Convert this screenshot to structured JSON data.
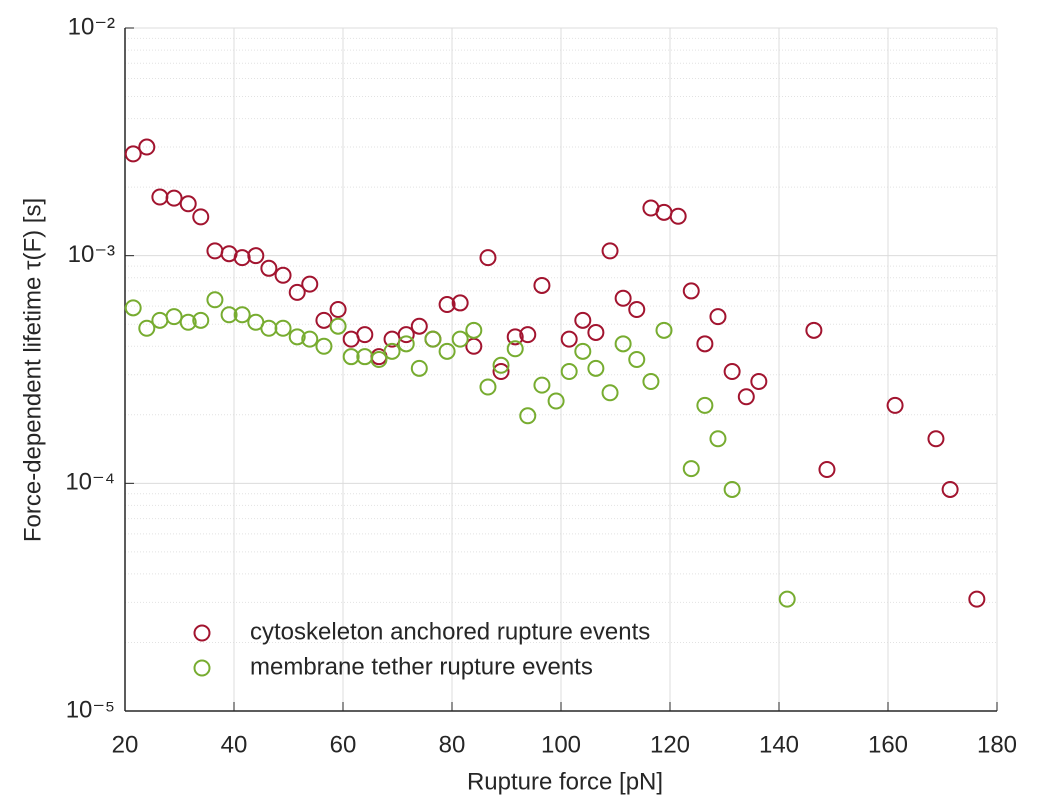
{
  "chart_data": {
    "type": "scatter",
    "x_label": "Rupture force [pN]",
    "y_label": "Force-dependent lifetime τ(F) [s]",
    "xlim": [
      20,
      180
    ],
    "xticks": [
      20,
      40,
      60,
      80,
      100,
      120,
      140,
      160,
      180
    ],
    "ylim": [
      1e-05,
      0.01
    ],
    "yticks": [
      {
        "value": 1e-05,
        "label": "10⁻⁵"
      },
      {
        "value": 0.0001,
        "label": "10⁻⁴"
      },
      {
        "value": 0.001,
        "label": "10⁻³"
      },
      {
        "value": 0.01,
        "label": "10⁻²"
      }
    ],
    "yminorticks": [
      2e-05,
      3e-05,
      4e-05,
      5e-05,
      6e-05,
      7e-05,
      8e-05,
      9e-05,
      0.0002,
      0.0003,
      0.0004,
      0.0005,
      0.0006,
      0.0007,
      0.0008,
      0.0009,
      0.002,
      0.003,
      0.004,
      0.005,
      0.006,
      0.007,
      0.008,
      0.009
    ],
    "y_scale": "log",
    "grid": true,
    "legend": "lower left",
    "series": [
      {
        "name": "cytoskeleton anchored rupture events",
        "color": "#a2142f",
        "x": [
          21.5,
          24.0,
          26.4,
          29.0,
          31.6,
          33.9,
          36.5,
          39.1,
          41.5,
          44.0,
          46.4,
          49.0,
          51.6,
          53.9,
          56.5,
          59.1,
          61.5,
          64.0,
          66.6,
          69.0,
          71.6,
          74.0,
          76.5,
          79.1,
          81.5,
          84.0,
          86.6,
          89.0,
          91.6,
          93.9,
          96.5,
          101.5,
          104.0,
          106.4,
          109.0,
          111.4,
          113.9,
          116.5,
          118.9,
          121.5,
          123.9,
          126.4,
          128.8,
          131.4,
          134.0,
          136.3,
          146.4,
          148.8,
          161.3,
          168.8,
          171.4,
          176.3
        ],
        "values": [
          0.0028,
          0.003,
          0.00181,
          0.00179,
          0.00169,
          0.00148,
          0.00105,
          0.00102,
          0.00098,
          0.001,
          0.00088,
          0.00082,
          0.00069,
          0.00075,
          0.00052,
          0.00058,
          0.00043,
          0.00045,
          0.00036,
          0.00043,
          0.00045,
          0.00049,
          0.00043,
          0.00061,
          0.00062,
          0.0004,
          0.00098,
          0.00031,
          0.00044,
          0.00045,
          0.00074,
          0.00043,
          0.00052,
          0.00046,
          0.00105,
          0.00065,
          0.00058,
          0.00162,
          0.00155,
          0.00149,
          0.0007,
          0.00041,
          0.00054,
          0.00031,
          0.00024,
          0.00028,
          0.00047,
          0.000115,
          0.00022,
          0.000157,
          9.4e-05,
          3.1e-05
        ]
      },
      {
        "name": "membrane tether rupture events",
        "color": "#77ac30",
        "x": [
          21.5,
          24.0,
          26.4,
          29.0,
          31.6,
          33.9,
          36.5,
          39.1,
          41.5,
          44.0,
          46.4,
          49.0,
          51.6,
          53.9,
          56.5,
          59.1,
          61.5,
          64.0,
          66.6,
          69.0,
          71.6,
          74.0,
          76.5,
          79.1,
          81.5,
          84.0,
          86.6,
          89.0,
          91.6,
          93.9,
          96.5,
          99.1,
          101.5,
          104.0,
          106.4,
          109.0,
          111.4,
          113.9,
          116.5,
          118.9,
          123.9,
          126.4,
          128.8,
          131.4,
          141.5
        ],
        "values": [
          0.00059,
          0.00048,
          0.00052,
          0.00054,
          0.00051,
          0.00052,
          0.00064,
          0.00055,
          0.00055,
          0.00051,
          0.00048,
          0.00048,
          0.00044,
          0.00043,
          0.0004,
          0.00049,
          0.00036,
          0.00036,
          0.00035,
          0.00038,
          0.00041,
          0.00032,
          0.00043,
          0.00038,
          0.00043,
          0.00047,
          0.000265,
          0.00033,
          0.00039,
          0.000198,
          0.00027,
          0.00023,
          0.00031,
          0.00038,
          0.00032,
          0.00025,
          0.00041,
          0.00035,
          0.00028,
          0.00047,
          0.000116,
          0.00022,
          0.000157,
          9.4e-05,
          3.1e-05
        ]
      }
    ]
  }
}
